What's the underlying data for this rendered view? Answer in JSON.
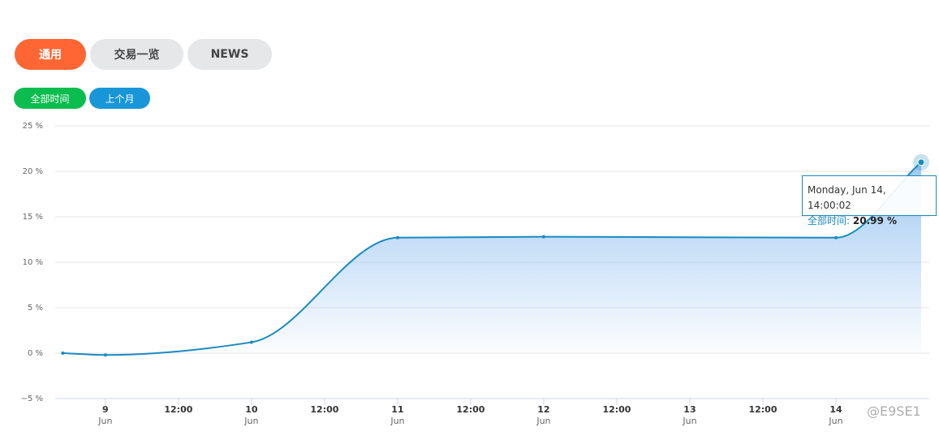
{
  "tabs": [
    "通用",
    "交易一览",
    "NEWS"
  ],
  "range_buttons": [
    "全部时间",
    "上个月"
  ],
  "chart_data": {
    "type": "area",
    "x": [
      "Jun 8 17:00",
      "Jun 9 00:00",
      "Jun 10 00:00",
      "Jun 11 00:00",
      "Jun 12 00:00",
      "Jun 14 00:00",
      "Jun 14 14:00:02"
    ],
    "series": [
      {
        "name": "全部时间",
        "color": "#1a8bbf",
        "values": [
          0.0,
          -0.2,
          1.2,
          12.7,
          12.8,
          12.7,
          20.99
        ]
      }
    ],
    "xlim": [
      "Jun 8 15:45",
      "Jun 14 16:00"
    ],
    "xticks": [
      {
        "value": "Jun 9 00:00",
        "label": "9\nJun"
      },
      {
        "value": "Jun 9 12:00",
        "label": "12:00"
      },
      {
        "value": "Jun 10 00:00",
        "label": "10\nJun"
      },
      {
        "value": "Jun 10 12:00",
        "label": "12:00"
      },
      {
        "value": "Jun 11 00:00",
        "label": "11\nJun"
      },
      {
        "value": "Jun 11 12:00",
        "label": "12:00"
      },
      {
        "value": "Jun 12 00:00",
        "label": "12\nJun"
      },
      {
        "value": "Jun 12 12:00",
        "label": "12:00"
      },
      {
        "value": "Jun 13 00:00",
        "label": "13\nJun"
      },
      {
        "value": "Jun 13 12:00",
        "label": "12:00"
      },
      {
        "value": "Jun 14 00:00",
        "label": "14\nJun"
      }
    ],
    "ylim": [
      -5,
      25
    ],
    "yticks": [
      {
        "value": -5,
        "label": "−5 %"
      },
      {
        "value": 0,
        "label": "0 %"
      },
      {
        "value": 5,
        "label": "5 %"
      },
      {
        "value": 10,
        "label": "10 %"
      },
      {
        "value": 15,
        "label": "15 %"
      },
      {
        "value": 20,
        "label": "20 %"
      },
      {
        "value": 25,
        "label": "25 %"
      }
    ],
    "grid": true,
    "tooltip": {
      "title": "Monday, Jun 14, 14:00:02",
      "value": "20.99 %"
    },
    "watermark": "@E9SE1"
  }
}
